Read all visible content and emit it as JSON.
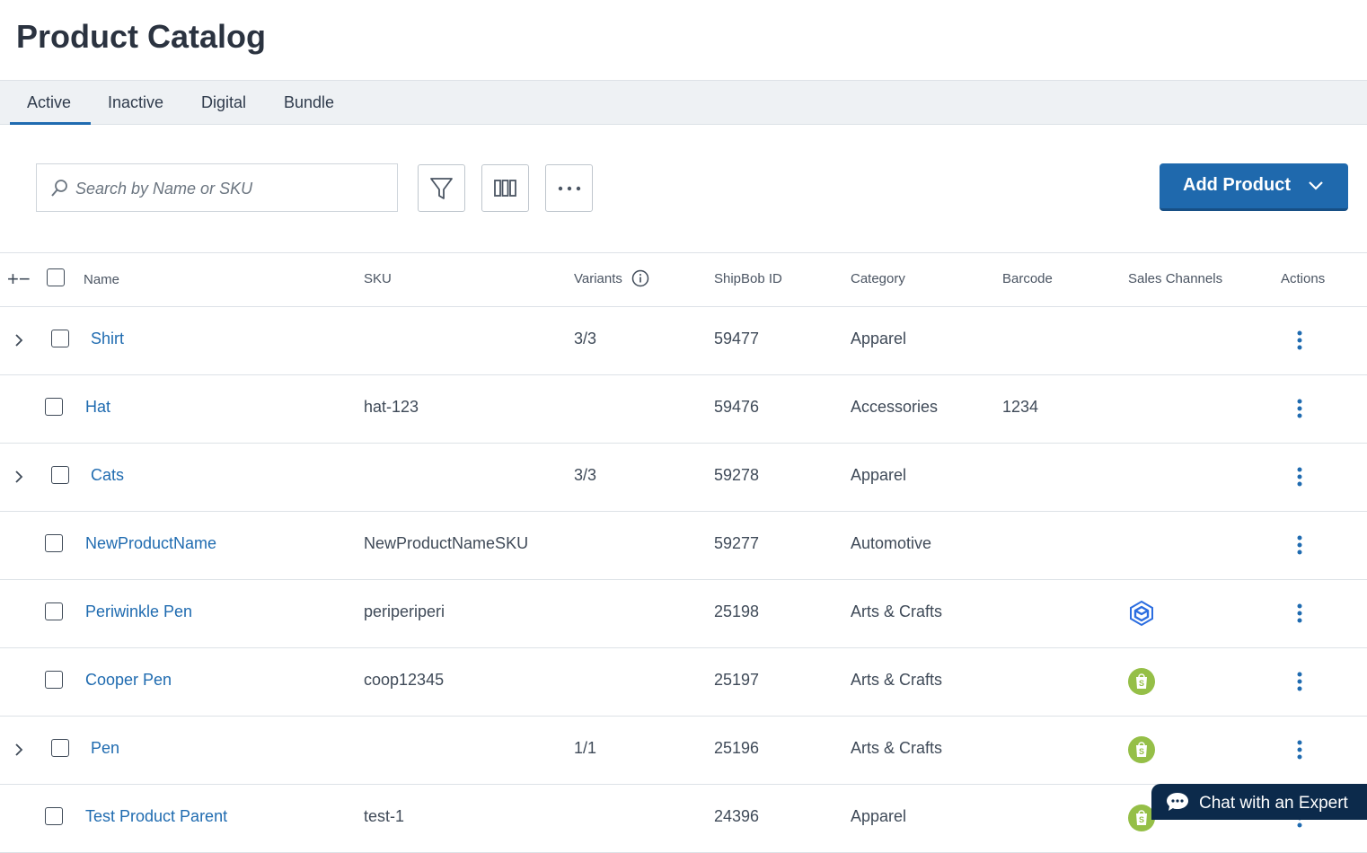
{
  "header": {
    "title": "Product Catalog"
  },
  "tabs": {
    "items": [
      "Active",
      "Inactive",
      "Digital",
      "Bundle"
    ],
    "active": 0
  },
  "toolbar": {
    "search_placeholder": "Search by Name or SKU",
    "add_button": "Add Product"
  },
  "table": {
    "columns": [
      "Name",
      "SKU",
      "Variants",
      "ShipBob ID",
      "Category",
      "Barcode",
      "Sales Channels",
      "Actions"
    ],
    "rows": [
      {
        "name": "Shirt",
        "variants": "3/3",
        "shipbob_id": 59477,
        "category": "Apparel",
        "expandable": true
      },
      {
        "name": "Hat",
        "sku": "hat-123",
        "shipbob_id": 59476,
        "category": "Accessories",
        "barcode": 1234,
        "expandable": false
      },
      {
        "name": "Cats",
        "variants": "3/3",
        "shipbob_id": 59278,
        "category": "Apparel",
        "expandable": true
      },
      {
        "name": "NewProductName",
        "sku": "NewProductNameSKU",
        "shipbob_id": 59277,
        "category": "Automotive",
        "expandable": false
      },
      {
        "name": "Periwinkle Pen",
        "sku": "periperiperi",
        "shipbob_id": 25198,
        "category": "Arts & Crafts",
        "sales_channel": "shipbob",
        "expandable": false
      },
      {
        "name": "Cooper Pen",
        "sku": "coop12345",
        "shipbob_id": 25197,
        "category": "Arts & Crafts",
        "sales_channel": "shopify",
        "expandable": false
      },
      {
        "name": "Pen",
        "variants": "1/1",
        "shipbob_id": 25196,
        "category": "Arts & Crafts",
        "sales_channel": "shopify",
        "expandable": true
      },
      {
        "name": "Test Product Parent",
        "sku": "test-1",
        "shipbob_id": 24396,
        "category": "Apparel",
        "sales_channel": "shopify",
        "expandable": false
      }
    ]
  },
  "chat": {
    "label": "Chat with an Expert"
  }
}
